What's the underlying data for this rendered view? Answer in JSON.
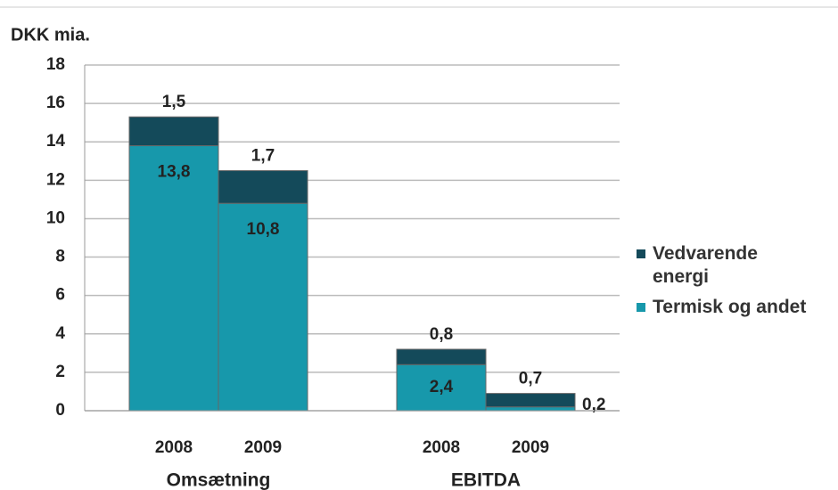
{
  "chart_data": {
    "type": "stacked-bar",
    "y_label": "DKK mia.",
    "categories": [
      "2008",
      "2009",
      "2008",
      "2009"
    ],
    "groups": [
      "Omsætning",
      "EBITDA"
    ],
    "series": [
      {
        "name": "Termisk og andet",
        "color": "#1798ab",
        "values": [
          13.8,
          10.8,
          2.4,
          0.2
        ],
        "value_labels": [
          "13,8",
          "10,8",
          "2,4",
          "0,2"
        ]
      },
      {
        "name": "Vedvarende energi",
        "color": "#144a5a",
        "values": [
          1.5,
          1.7,
          0.8,
          0.7
        ],
        "value_labels": [
          "1,5",
          "1,7",
          "0,8",
          "0,7"
        ]
      }
    ],
    "ylim": [
      0,
      18
    ],
    "yticks": [
      0,
      2,
      4,
      6,
      8,
      10,
      12,
      14,
      16,
      18
    ],
    "grid": true,
    "legend": "right"
  }
}
